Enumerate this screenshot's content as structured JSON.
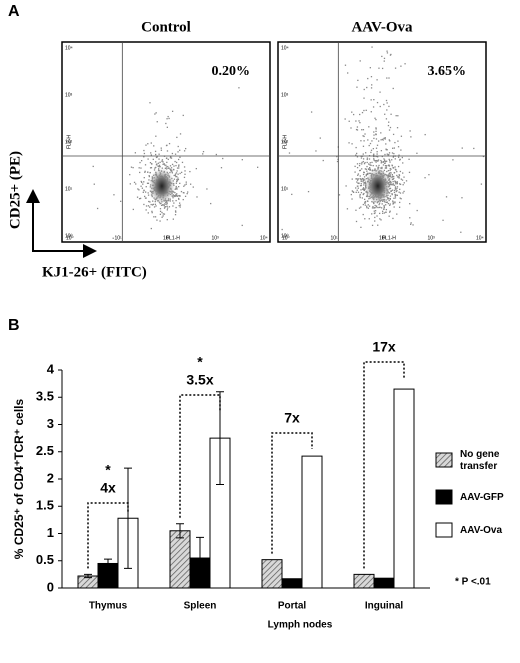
{
  "panel_a": {
    "label": "A",
    "y_label": "CD25+ (PE)",
    "x_label": "KJ1-26+ (FITC)",
    "decades": [
      "10⁰",
      "10¹",
      "10²",
      "10³",
      "10⁴"
    ],
    "x_channel": "FL1-H",
    "y_channel": "FL2-H",
    "plots": [
      {
        "title": "Control",
        "percent": "0.20%"
      },
      {
        "title": "AAV-Ova",
        "percent": "3.65%"
      }
    ]
  },
  "chart_data": {
    "type": "bar",
    "panel_label": "B",
    "categories": [
      "Thymus",
      "Spleen",
      "Portal",
      "Inguinal"
    ],
    "series": [
      {
        "name": "No gene transfer",
        "color": "#b0b0b0",
        "hatch": true,
        "values": [
          0.22,
          1.05,
          0.52,
          0.25
        ],
        "errors": [
          0.03,
          0.13,
          null,
          null
        ]
      },
      {
        "name": "AAV-GFP",
        "color": "#000000",
        "values": [
          0.45,
          0.55,
          0.17,
          0.18
        ],
        "errors": [
          0.08,
          0.38,
          null,
          null
        ]
      },
      {
        "name": "AAV-Ova",
        "color": "#ffffff",
        "values": [
          1.28,
          2.75,
          2.42,
          3.65
        ],
        "errors": [
          0.92,
          0.85,
          null,
          null
        ]
      }
    ],
    "ylim": [
      0,
      4
    ],
    "yticks": [
      0,
      0.5,
      1,
      1.5,
      2,
      2.5,
      3,
      3.5,
      4
    ],
    "y_label": "% CD25⁺ of CD4⁺TCR⁺ cells",
    "x_label": "Lymph nodes",
    "fold_labels": [
      "4x",
      "3.5x",
      "7x",
      "17x"
    ],
    "stars": [
      "*",
      "*",
      null,
      null
    ],
    "footnote": "* P <.01"
  }
}
